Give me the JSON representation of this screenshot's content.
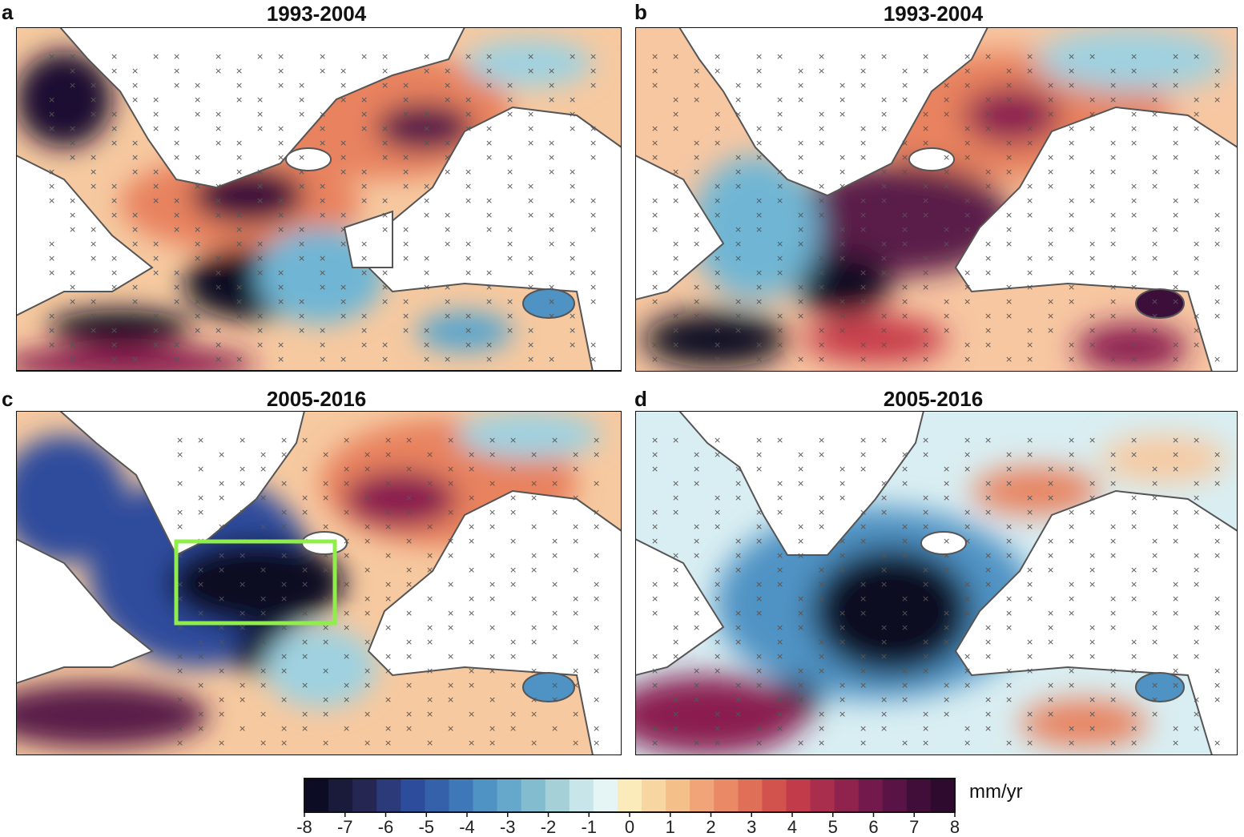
{
  "panels": [
    {
      "letter": "a",
      "title": "1993-2004"
    },
    {
      "letter": "b",
      "title": "1993-2004"
    },
    {
      "letter": "c",
      "title": "2005-2016"
    },
    {
      "letter": "d",
      "title": "2005-2016"
    }
  ],
  "colorbar": {
    "unit": "mm/yr",
    "ticks": [
      "-8",
      "-7",
      "-6",
      "-5",
      "-4",
      "-3",
      "-2",
      "-1",
      "0",
      "1",
      "2",
      "3",
      "4",
      "5",
      "6",
      "7",
      "8"
    ],
    "range": [
      -8,
      8
    ]
  },
  "colors": {
    "land": "#ffffff",
    "coast": "#555555",
    "highlight_box": "#90ee4a",
    "hatch": "#555555"
  }
}
